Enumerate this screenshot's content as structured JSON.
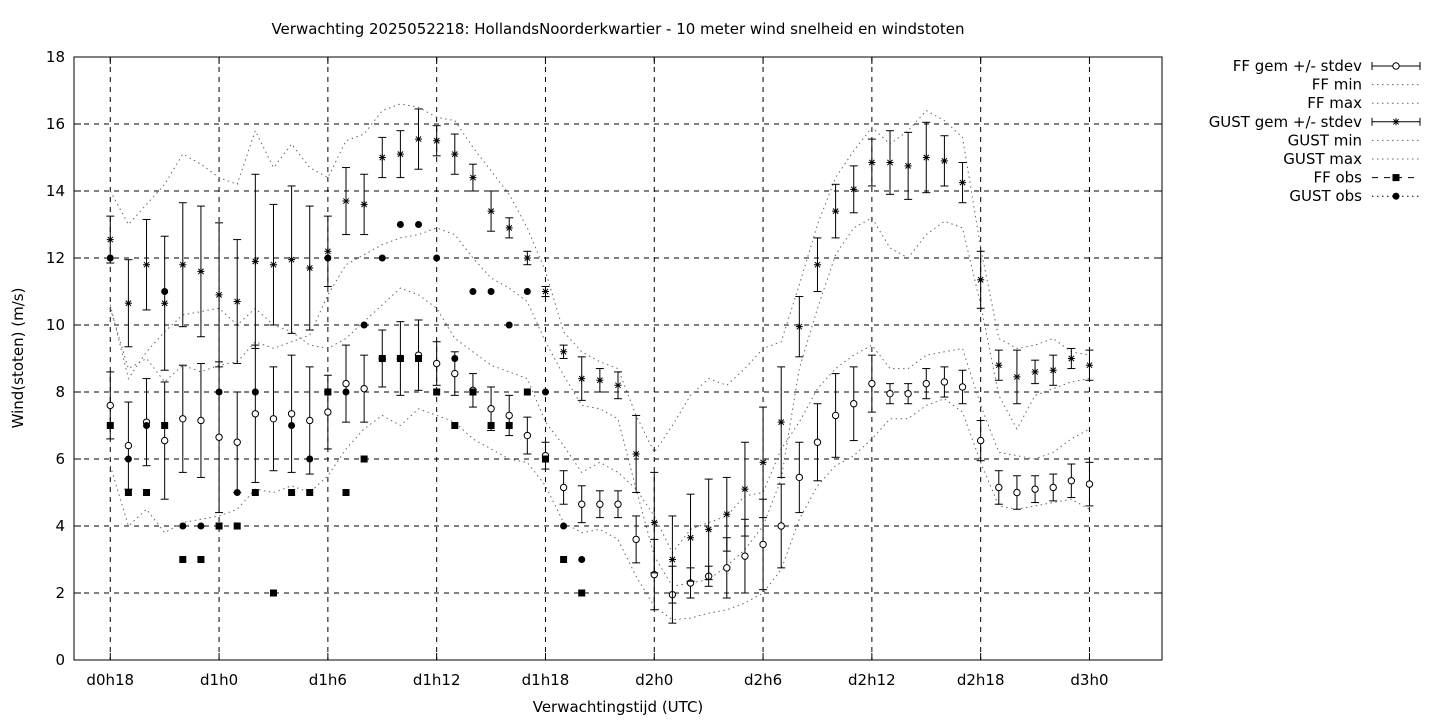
{
  "chart_data": {
    "type": "line",
    "title": "Verwachting 2025052218: HollandsNoorderkwartier - 10 meter wind snelheid en windstoten",
    "xlabel": "Verwachtingstijd (UTC)",
    "ylabel": "Wind(stoten) (m/s)",
    "ylim": [
      0,
      18
    ],
    "xlim": [
      -2,
      58
    ],
    "x_units": "hours since d0h18",
    "yticks": [
      0,
      2,
      4,
      6,
      8,
      10,
      12,
      14,
      16,
      18
    ],
    "xticks": [
      {
        "x": 0,
        "label": "d0h18"
      },
      {
        "x": 6,
        "label": "d1h0"
      },
      {
        "x": 12,
        "label": "d1h6"
      },
      {
        "x": 18,
        "label": "d1h12"
      },
      {
        "x": 24,
        "label": "d1h18"
      },
      {
        "x": 30,
        "label": "d2h0"
      },
      {
        "x": 36,
        "label": "d2h6"
      },
      {
        "x": 42,
        "label": "d2h12"
      },
      {
        "x": 48,
        "label": "d2h18"
      },
      {
        "x": 54,
        "label": "d3h0"
      }
    ],
    "grid": true,
    "legend_position": "outside top-right",
    "legend": [
      {
        "label": "FF gem +/- stdev",
        "style": "errorbar-circle"
      },
      {
        "label": "FF min",
        "style": "dotted"
      },
      {
        "label": "FF max",
        "style": "dotted"
      },
      {
        "label": "GUST gem +/- stdev",
        "style": "errorbar-star"
      },
      {
        "label": "GUST min",
        "style": "dotted"
      },
      {
        "label": "GUST max",
        "style": "dotted"
      },
      {
        "label": "FF obs",
        "style": "square"
      },
      {
        "label": "GUST obs",
        "style": "dot"
      }
    ],
    "series": [
      {
        "name": "FF gem +/- stdev",
        "x": [
          0,
          1,
          2,
          3,
          4,
          5,
          6,
          7,
          8,
          9,
          10,
          11,
          12,
          13,
          14,
          15,
          16,
          17,
          18,
          19,
          20,
          21,
          22,
          23,
          24,
          25,
          26,
          27,
          28,
          29,
          30,
          31,
          32,
          33,
          34,
          35,
          36,
          37,
          38,
          39,
          40,
          41,
          42,
          43,
          44,
          45,
          46,
          47,
          48,
          49,
          50,
          51,
          52,
          53,
          54
        ],
        "values": [
          7.6,
          6.4,
          7.1,
          6.55,
          7.2,
          7.15,
          6.65,
          6.5,
          7.35,
          7.2,
          7.35,
          7.15,
          7.4,
          8.25,
          8.1,
          9.0,
          9.0,
          9.1,
          8.85,
          8.55,
          8.05,
          7.5,
          7.3,
          6.7,
          6.1,
          5.15,
          4.65,
          4.65,
          4.65,
          3.6,
          2.55,
          1.95,
          2.3,
          2.5,
          2.75,
          3.1,
          3.45,
          4.0,
          5.45,
          6.5,
          7.3,
          7.65,
          8.25,
          7.95,
          7.95,
          8.25,
          8.3,
          8.15,
          6.55,
          5.15,
          5.0,
          5.1,
          5.15,
          5.35,
          5.25
        ],
        "stdev": [
          1.0,
          1.3,
          1.3,
          1.75,
          1.6,
          1.7,
          2.25,
          1.5,
          2.05,
          1.55,
          1.75,
          1.6,
          1.1,
          1.15,
          1.0,
          0.85,
          1.1,
          1.05,
          0.65,
          0.65,
          0.5,
          0.65,
          0.6,
          0.55,
          0.4,
          0.5,
          0.55,
          0.4,
          0.4,
          0.7,
          1.05,
          0.85,
          0.45,
          0.3,
          0.9,
          1.1,
          1.35,
          1.25,
          1.05,
          1.15,
          1.25,
          1.1,
          0.85,
          0.3,
          0.3,
          0.45,
          0.45,
          0.5,
          0.6,
          0.5,
          0.5,
          0.4,
          0.4,
          0.5,
          0.65
        ]
      },
      {
        "name": "FF min",
        "x": [
          0,
          1,
          2,
          3,
          4,
          5,
          6,
          7,
          8,
          9,
          10,
          11,
          12,
          13,
          14,
          15,
          16,
          17,
          18,
          19,
          20,
          21,
          22,
          23,
          24,
          25,
          26,
          27,
          28,
          29,
          30,
          31,
          32,
          33,
          34,
          35,
          36,
          37,
          38,
          39,
          40,
          41,
          42,
          43,
          44,
          45,
          46,
          47,
          48,
          49,
          50,
          51,
          52,
          53,
          54
        ],
        "values": [
          5.8,
          4.0,
          4.5,
          3.8,
          4.1,
          4.2,
          4.3,
          4.5,
          5.1,
          5.0,
          5.2,
          5.0,
          5.5,
          6.3,
          6.9,
          7.3,
          7.0,
          7.5,
          7.3,
          7.1,
          6.6,
          6.3,
          6.0,
          5.9,
          5.2,
          4.1,
          3.8,
          3.9,
          3.6,
          2.5,
          1.6,
          1.2,
          1.25,
          1.4,
          1.5,
          1.7,
          2.0,
          2.7,
          4.2,
          5.2,
          5.8,
          6.1,
          6.6,
          7.2,
          7.2,
          7.6,
          7.8,
          7.4,
          5.9,
          4.6,
          4.5,
          4.6,
          4.7,
          4.8,
          4.5
        ]
      },
      {
        "name": "FF max",
        "x": [
          0,
          1,
          2,
          3,
          4,
          5,
          6,
          7,
          8,
          9,
          10,
          11,
          12,
          13,
          14,
          15,
          16,
          17,
          18,
          19,
          20,
          21,
          22,
          23,
          24,
          25,
          26,
          27,
          28,
          29,
          30,
          31,
          32,
          33,
          34,
          35,
          36,
          37,
          38,
          39,
          40,
          41,
          42,
          43,
          44,
          45,
          46,
          47,
          48,
          49,
          50,
          51,
          52,
          53,
          54
        ],
        "values": [
          10.6,
          8.4,
          9.2,
          9.8,
          10.3,
          10.4,
          10.5,
          10.0,
          10.5,
          10.0,
          9.8,
          9.4,
          9.3,
          9.6,
          10.1,
          10.6,
          11.1,
          10.9,
          10.5,
          9.6,
          9.2,
          8.8,
          8.6,
          8.4,
          7.1,
          6.4,
          5.6,
          5.9,
          5.6,
          5.1,
          4.3,
          3.2,
          3.9,
          4.1,
          4.3,
          4.9,
          5.0,
          6.3,
          7.1,
          8.1,
          8.7,
          9.1,
          9.4,
          8.7,
          8.7,
          9.1,
          9.2,
          9.3,
          7.6,
          6.2,
          6.1,
          6.0,
          6.2,
          6.6,
          6.9
        ]
      },
      {
        "name": "GUST gem +/- stdev",
        "x": [
          0,
          1,
          2,
          3,
          4,
          5,
          6,
          7,
          8,
          9,
          10,
          11,
          12,
          13,
          14,
          15,
          16,
          17,
          18,
          19,
          20,
          21,
          22,
          23,
          24,
          25,
          26,
          27,
          28,
          29,
          30,
          31,
          32,
          33,
          34,
          35,
          36,
          37,
          38,
          39,
          40,
          41,
          42,
          43,
          44,
          45,
          46,
          47,
          48,
          49,
          50,
          51,
          52,
          53,
          54
        ],
        "values": [
          12.55,
          10.65,
          11.8,
          10.65,
          11.8,
          11.6,
          10.9,
          10.7,
          11.9,
          11.8,
          11.95,
          11.7,
          12.2,
          13.7,
          13.6,
          15.0,
          15.1,
          15.55,
          15.5,
          15.1,
          14.4,
          13.4,
          12.9,
          12.0,
          11.0,
          9.2,
          8.4,
          8.35,
          8.2,
          6.15,
          4.1,
          3.0,
          3.65,
          3.9,
          4.35,
          5.1,
          5.9,
          7.1,
          9.95,
          11.8,
          13.4,
          14.05,
          14.85,
          14.85,
          14.75,
          15.0,
          14.9,
          14.25,
          11.35,
          8.8,
          8.45,
          8.6,
          8.65,
          9.0,
          8.8
        ],
        "stdev": [
          0.7,
          1.3,
          1.35,
          2.0,
          1.85,
          1.95,
          2.15,
          1.85,
          2.6,
          1.8,
          2.2,
          1.85,
          1.05,
          1.0,
          0.9,
          0.6,
          0.7,
          0.9,
          0.45,
          0.6,
          0.4,
          0.6,
          0.3,
          0.2,
          0.15,
          0.2,
          0.65,
          0.35,
          0.4,
          1.15,
          1.5,
          1.3,
          1.3,
          1.5,
          1.1,
          1.4,
          1.65,
          1.65,
          0.9,
          0.8,
          0.8,
          0.7,
          0.7,
          0.95,
          1.0,
          1.05,
          0.75,
          0.6,
          0.85,
          0.45,
          0.8,
          0.35,
          0.45,
          0.3,
          0.45
        ]
      },
      {
        "name": "GUST min",
        "x": [
          0,
          1,
          2,
          3,
          4,
          5,
          6,
          7,
          8,
          9,
          10,
          11,
          12,
          13,
          14,
          15,
          16,
          17,
          18,
          19,
          20,
          21,
          22,
          23,
          24,
          25,
          26,
          27,
          28,
          29,
          30,
          31,
          32,
          33,
          34,
          35,
          36,
          37,
          38,
          39,
          40,
          41,
          42,
          43,
          44,
          45,
          46,
          47,
          48,
          49,
          50,
          51,
          52,
          53,
          54
        ],
        "values": [
          10.5,
          8.7,
          9.0,
          8.3,
          8.8,
          8.6,
          8.8,
          8.9,
          9.5,
          9.3,
          9.5,
          9.7,
          10.9,
          11.8,
          12.1,
          12.4,
          12.6,
          12.7,
          12.9,
          12.7,
          12.0,
          11.4,
          11.1,
          10.7,
          9.5,
          8.5,
          7.6,
          7.5,
          7.2,
          5.1,
          3.1,
          2.2,
          2.3,
          2.4,
          2.8,
          3.3,
          4.0,
          5.4,
          8.7,
          10.5,
          12.1,
          12.9,
          13.2,
          12.3,
          12.0,
          12.7,
          13.1,
          12.9,
          10.6,
          7.9,
          6.9,
          7.9,
          8.1,
          8.3,
          8.4
        ]
      },
      {
        "name": "GUST max",
        "x": [
          0,
          1,
          2,
          3,
          4,
          5,
          6,
          7,
          8,
          9,
          10,
          11,
          12,
          13,
          14,
          15,
          16,
          17,
          18,
          19,
          20,
          21,
          22,
          23,
          24,
          25,
          26,
          27,
          28,
          29,
          30,
          31,
          32,
          33,
          34,
          35,
          36,
          37,
          38,
          39,
          40,
          41,
          42,
          43,
          44,
          45,
          46,
          47,
          48,
          49,
          50,
          51,
          52,
          53,
          54
        ],
        "values": [
          14.0,
          13.0,
          13.6,
          14.2,
          15.1,
          14.8,
          14.4,
          14.2,
          15.8,
          14.7,
          15.4,
          14.7,
          14.4,
          15.5,
          15.7,
          16.4,
          16.6,
          16.5,
          16.2,
          16.1,
          15.3,
          14.6,
          13.9,
          12.9,
          11.6,
          9.8,
          9.2,
          8.9,
          8.7,
          7.3,
          6.2,
          7.0,
          7.9,
          8.4,
          8.2,
          8.7,
          9.3,
          9.5,
          11.2,
          13.0,
          14.4,
          15.2,
          15.9,
          15.4,
          15.8,
          16.4,
          16.1,
          15.6,
          12.3,
          9.6,
          9.3,
          9.4,
          9.6,
          9.2,
          9.1
        ]
      },
      {
        "name": "FF obs",
        "x": [
          0,
          1,
          2,
          3,
          4,
          5,
          6,
          7,
          8,
          9,
          10,
          11,
          12,
          13,
          14,
          15,
          16,
          17,
          18,
          19,
          20,
          21,
          22,
          23,
          24,
          25,
          26
        ],
        "values": [
          7,
          5,
          5,
          7,
          3,
          3,
          4,
          4,
          5,
          2,
          5,
          5,
          8,
          5,
          6,
          9,
          9,
          9,
          8,
          7,
          8,
          7,
          7,
          8,
          6,
          3,
          2
        ]
      },
      {
        "name": "GUST obs",
        "x": [
          0,
          1,
          2,
          3,
          4,
          5,
          6,
          7,
          8,
          9,
          10,
          11,
          12,
          13,
          14,
          15,
          16,
          17,
          18,
          19,
          20,
          21,
          22,
          23,
          24,
          25,
          26
        ],
        "values": [
          12,
          6,
          7,
          11,
          4,
          4,
          8,
          5,
          8,
          null,
          7,
          6,
          12,
          8,
          10,
          12,
          13,
          13,
          12,
          9,
          11,
          11,
          10,
          11,
          8,
          4,
          3
        ]
      }
    ]
  }
}
